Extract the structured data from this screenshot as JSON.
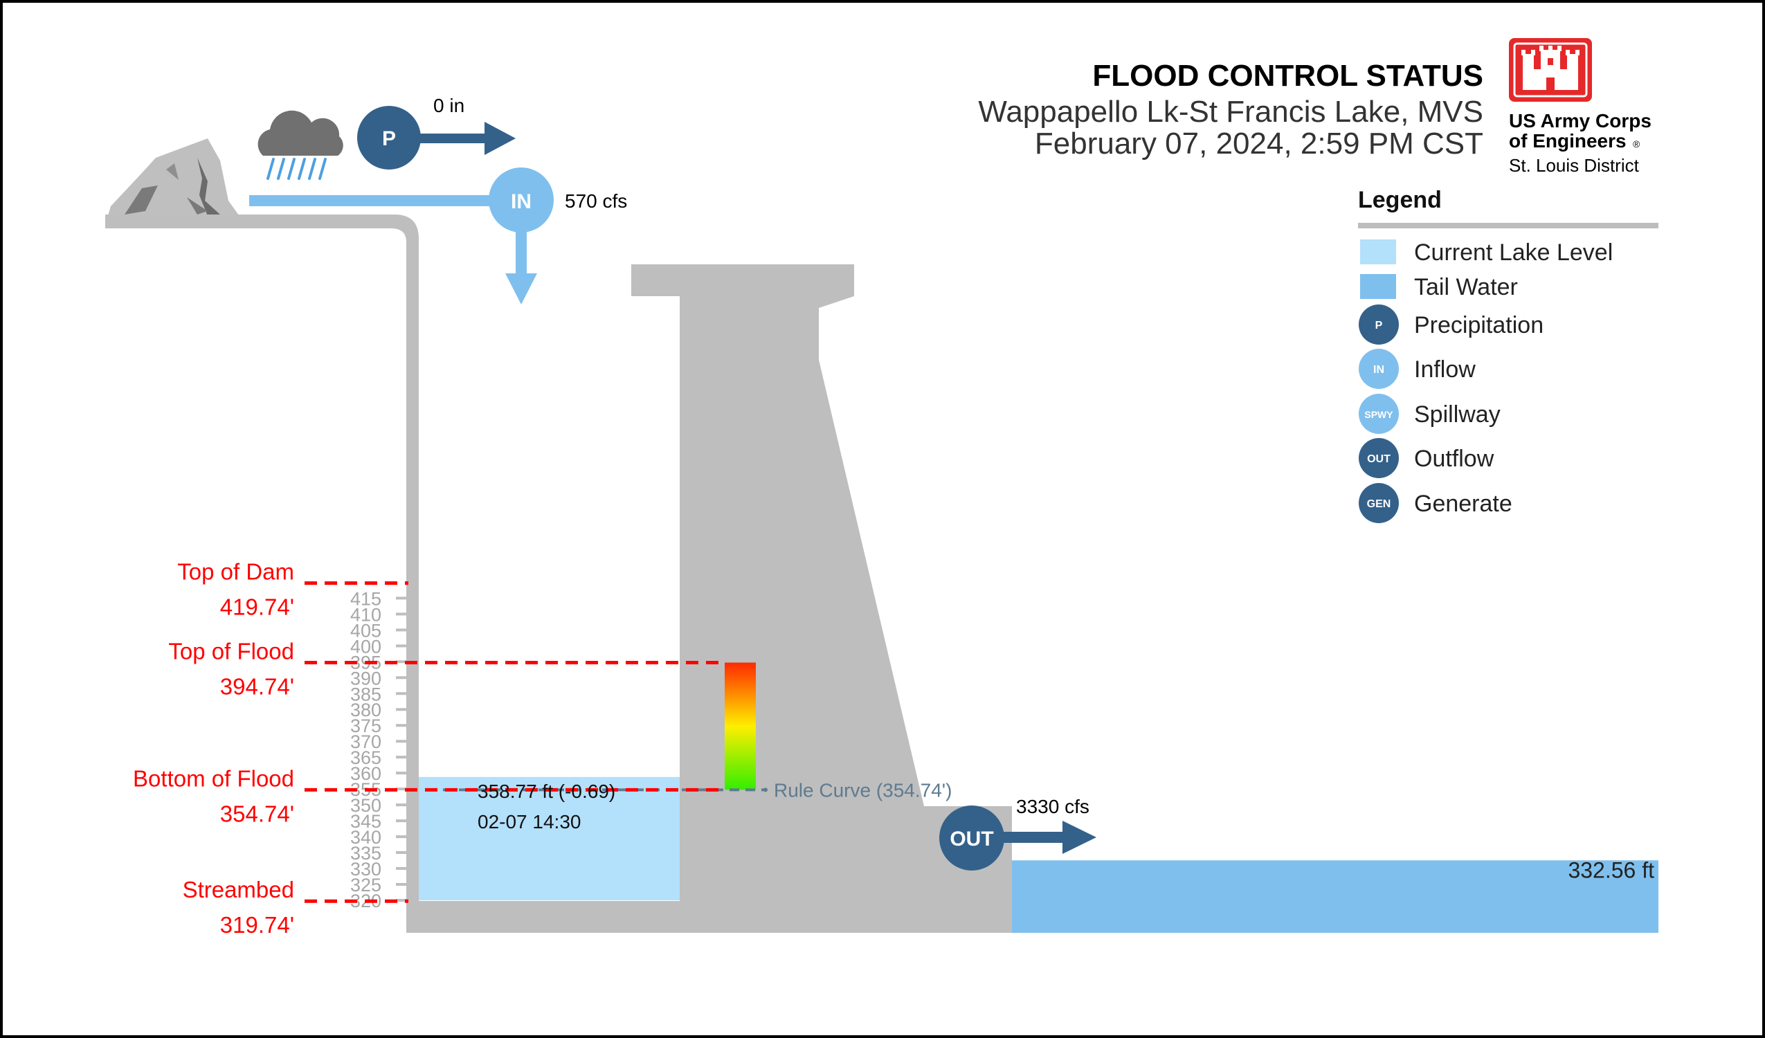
{
  "header": {
    "title": "FLOOD CONTROL STATUS",
    "project": "Wappapello Lk-St Francis Lake, MVS",
    "datetime": "February 07, 2024, 2:59 PM CST"
  },
  "logo": {
    "line1": "US Army Corps",
    "line2": "of Engineers",
    "registered": "®",
    "line3": "St. Louis District"
  },
  "legend": {
    "title": "Legend",
    "items": [
      {
        "label": "Current Lake Level",
        "kind": "swatch",
        "color": "#b3e0fb"
      },
      {
        "label": "Tail Water",
        "kind": "swatch",
        "color": "#7fbfed"
      },
      {
        "label": "Precipitation",
        "kind": "circle",
        "code": "P",
        "color": "#34618a"
      },
      {
        "label": "Inflow",
        "kind": "circle",
        "code": "IN",
        "color": "#7fbfed"
      },
      {
        "label": "Spillway",
        "kind": "circle",
        "code": "SPWY",
        "color": "#7fbfed"
      },
      {
        "label": "Outflow",
        "kind": "circle",
        "code": "OUT",
        "color": "#34618a"
      },
      {
        "label": "Generate",
        "kind": "circle",
        "code": "GEN",
        "color": "#34618a"
      }
    ]
  },
  "flows": {
    "precip_code": "P",
    "precipitation": "0 in",
    "inflow_code": "IN",
    "inflow": "570 cfs",
    "outflow_code": "OUT",
    "outflow": "3330 cfs"
  },
  "levels": [
    {
      "name": "Top of Dam",
      "value_label": "419.74'",
      "elev": 419.74
    },
    {
      "name": "Top of Flood",
      "value_label": "394.74'",
      "elev": 394.74
    },
    {
      "name": "Bottom of Flood",
      "value_label": "354.74'",
      "elev": 354.74
    },
    {
      "name": "Streambed",
      "value_label": "319.74'",
      "elev": 319.74
    }
  ],
  "lake": {
    "elev": 358.77,
    "reading": "358.77 ft (-0.69)",
    "timestamp": "02-07 14:30"
  },
  "rule_curve": {
    "elev": 354.74,
    "label": "Rule Curve  (354.74')"
  },
  "tailwater": {
    "elev": 332.56,
    "label": "332.56 ft"
  },
  "axis": {
    "ticks": [
      320,
      325,
      330,
      335,
      340,
      345,
      350,
      355,
      360,
      365,
      370,
      375,
      380,
      385,
      390,
      395,
      400,
      405,
      410,
      415
    ]
  },
  "colors": {
    "limit_line": "#ff0000",
    "dam": "#bebebe",
    "lake": "#b3e0fb",
    "tailwater": "#7fbfed",
    "dark_blue": "#34618a",
    "rule_curve": "#5f7a8f",
    "logo_red": "#e5282a"
  }
}
